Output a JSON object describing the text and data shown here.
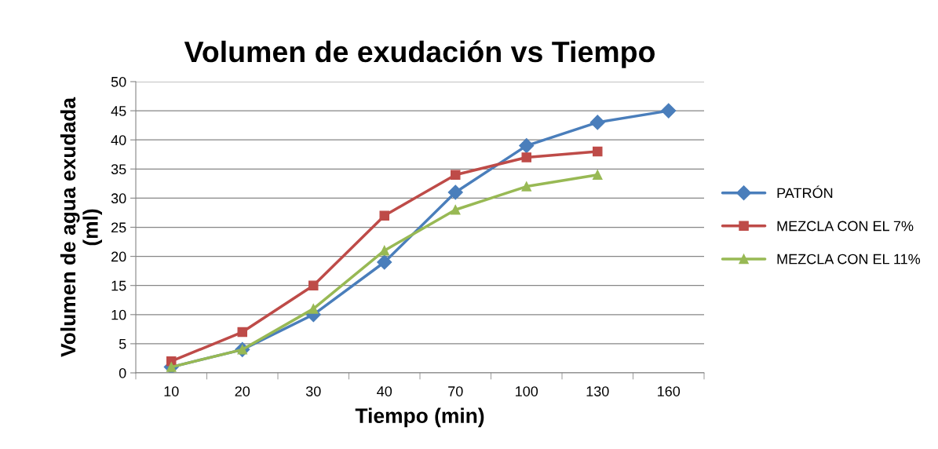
{
  "chart_data": {
    "type": "line",
    "title": "Volumen de exudación vs Tiempo",
    "xlabel": "Tiempo (min)",
    "ylabel": "Volumen de agua exudada\n(ml)",
    "categories": [
      "10",
      "20",
      "30",
      "40",
      "70",
      "100",
      "130",
      "160"
    ],
    "series": [
      {
        "name": "PATRÓN",
        "color": "#4a7ebb",
        "marker": "diamond",
        "values": [
          1,
          4,
          10,
          19,
          31,
          39,
          43,
          45
        ]
      },
      {
        "name": "MEZCLA CON EL 7%",
        "color": "#be4b48",
        "marker": "square",
        "values": [
          2,
          7,
          15,
          27,
          34,
          37,
          38,
          null
        ]
      },
      {
        "name": "MEZCLA CON EL 11%",
        "color": "#98b954",
        "marker": "triangle",
        "values": [
          1,
          4,
          11,
          21,
          28,
          32,
          34,
          null
        ]
      }
    ],
    "ylim": [
      0,
      50
    ],
    "yticks": [
      0,
      5,
      10,
      15,
      20,
      25,
      30,
      35,
      40,
      45,
      50
    ],
    "grid": "y",
    "legend": "right"
  }
}
